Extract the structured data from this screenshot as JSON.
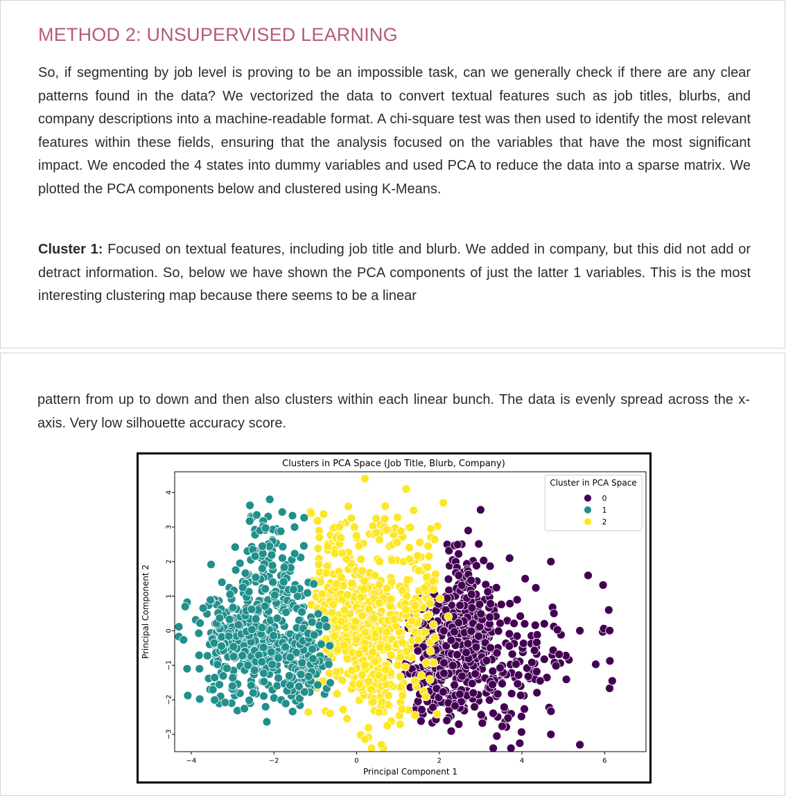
{
  "section": {
    "heading": "METHOD 2: UNSUPERVISED LEARNING",
    "intro": "So, if segmenting by job level is proving to be an impossible task, can we generally check if there are any clear patterns found in the data? We vectorized the data to convert textual features such as job titles, blurbs, and company descriptions into a machine-readable format. A chi-square test was then used to identify the most relevant features within these fields, ensuring that the analysis focused on the variables that have the most significant impact. We encoded the 4 states into dummy variables and used PCA to reduce the data into a sparse matrix. We plotted the PCA components below and clustered using K-Means.",
    "cluster_label": "Cluster 1:",
    "cluster_text_part1": " Focused on textual features, including job title and blurb. We added in company, but this did not add or detract information. So, below we have shown the PCA components of just the latter 1 variables. This is the most interesting clustering map because there seems to be a linear",
    "cluster_text_part2": "pattern from up to down and then also clusters within each linear bunch. The data is evenly spread across the x-axis. Very low silhouette accuracy score."
  },
  "chart_data": {
    "type": "scatter",
    "title": "Clusters in PCA Space (Job Title, Blurb, Company)",
    "xlabel": "Principal Component 1",
    "ylabel": "Principal Component 2",
    "xlim": [
      -4.4,
      7.0
    ],
    "ylim": [
      -3.5,
      4.6
    ],
    "xticks": [
      -4,
      -2,
      0,
      2,
      4,
      6
    ],
    "yticks": [
      4,
      3,
      2,
      1,
      0,
      -1,
      -2,
      -3
    ],
    "legend": {
      "title": "Cluster in PCA Space",
      "position": "top-right",
      "entries": [
        "0",
        "1",
        "2"
      ]
    },
    "series": [
      {
        "name": "0",
        "color": "#440154",
        "blobs": [
          {
            "x": 1.9,
            "y": -0.8,
            "sx": 0.35,
            "sy": 0.9,
            "n": 220
          },
          {
            "x": 2.6,
            "y": -1.0,
            "sx": 0.3,
            "sy": 0.8,
            "n": 130
          },
          {
            "x": 2.5,
            "y": 1.0,
            "sx": 0.25,
            "sy": 0.9,
            "n": 80
          },
          {
            "x": 3.0,
            "y": 0.1,
            "sx": 0.25,
            "sy": 0.6,
            "n": 60
          },
          {
            "x": 3.6,
            "y": -1.3,
            "sx": 0.25,
            "sy": 1.1,
            "n": 70
          },
          {
            "x": 4.3,
            "y": -0.6,
            "sx": 0.3,
            "sy": 1.0,
            "n": 30
          },
          {
            "x": 5.0,
            "y": -0.8,
            "sx": 0.3,
            "sy": 0.6,
            "n": 15
          },
          {
            "x": 5.8,
            "y": -1.0,
            "sx": 0.3,
            "sy": 1.1,
            "n": 8
          }
        ],
        "points": [
          [
            2.7,
            2.9
          ],
          [
            3.0,
            3.5
          ],
          [
            3.7,
            2.1
          ],
          [
            4.7,
            2.0
          ],
          [
            5.6,
            1.6
          ],
          [
            6.1,
            0.6
          ],
          [
            5.4,
            0.0
          ],
          [
            5.4,
            -3.3
          ],
          [
            4.7,
            -3.0
          ]
        ]
      },
      {
        "name": "1",
        "color": "#21908d",
        "blobs": [
          {
            "x": -2.8,
            "y": -0.5,
            "sx": 0.6,
            "sy": 0.8,
            "n": 260
          },
          {
            "x": -2.0,
            "y": 0.6,
            "sx": 0.5,
            "sy": 1.1,
            "n": 200
          },
          {
            "x": -1.3,
            "y": -0.9,
            "sx": 0.3,
            "sy": 0.6,
            "n": 120
          },
          {
            "x": -2.3,
            "y": 2.8,
            "sx": 0.25,
            "sy": 0.35,
            "n": 25
          }
        ],
        "points": [
          [
            -2.1,
            3.8
          ],
          [
            -4.1,
            -1.1
          ],
          [
            -3.8,
            -1.1
          ],
          [
            -2.5,
            -1.8
          ],
          [
            -2.2,
            -2.2
          ],
          [
            -1.5,
            3.0
          ]
        ]
      },
      {
        "name": "2",
        "color": "#fde725",
        "blobs": [
          {
            "x": -0.6,
            "y": 0.3,
            "sx": 0.35,
            "sy": 1.1,
            "n": 140
          },
          {
            "x": 0.25,
            "y": 0.3,
            "sx": 0.45,
            "sy": 1.0,
            "n": 250
          },
          {
            "x": 0.6,
            "y": -1.3,
            "sx": 0.3,
            "sy": 1.0,
            "n": 100
          },
          {
            "x": 1.4,
            "y": 0.5,
            "sx": 0.3,
            "sy": 1.2,
            "n": 130
          },
          {
            "x": -0.4,
            "y": 2.7,
            "sx": 0.2,
            "sy": 0.3,
            "n": 20
          },
          {
            "x": 0.75,
            "y": 2.9,
            "sx": 0.2,
            "sy": 0.25,
            "n": 20
          }
        ],
        "points": [
          [
            0.2,
            4.4
          ],
          [
            1.2,
            4.1
          ],
          [
            2.1,
            3.7
          ],
          [
            -1.1,
            3.4
          ],
          [
            -0.9,
            2.7
          ],
          [
            -0.2,
            3.6
          ],
          [
            0.6,
            -3.3
          ]
        ]
      }
    ]
  }
}
